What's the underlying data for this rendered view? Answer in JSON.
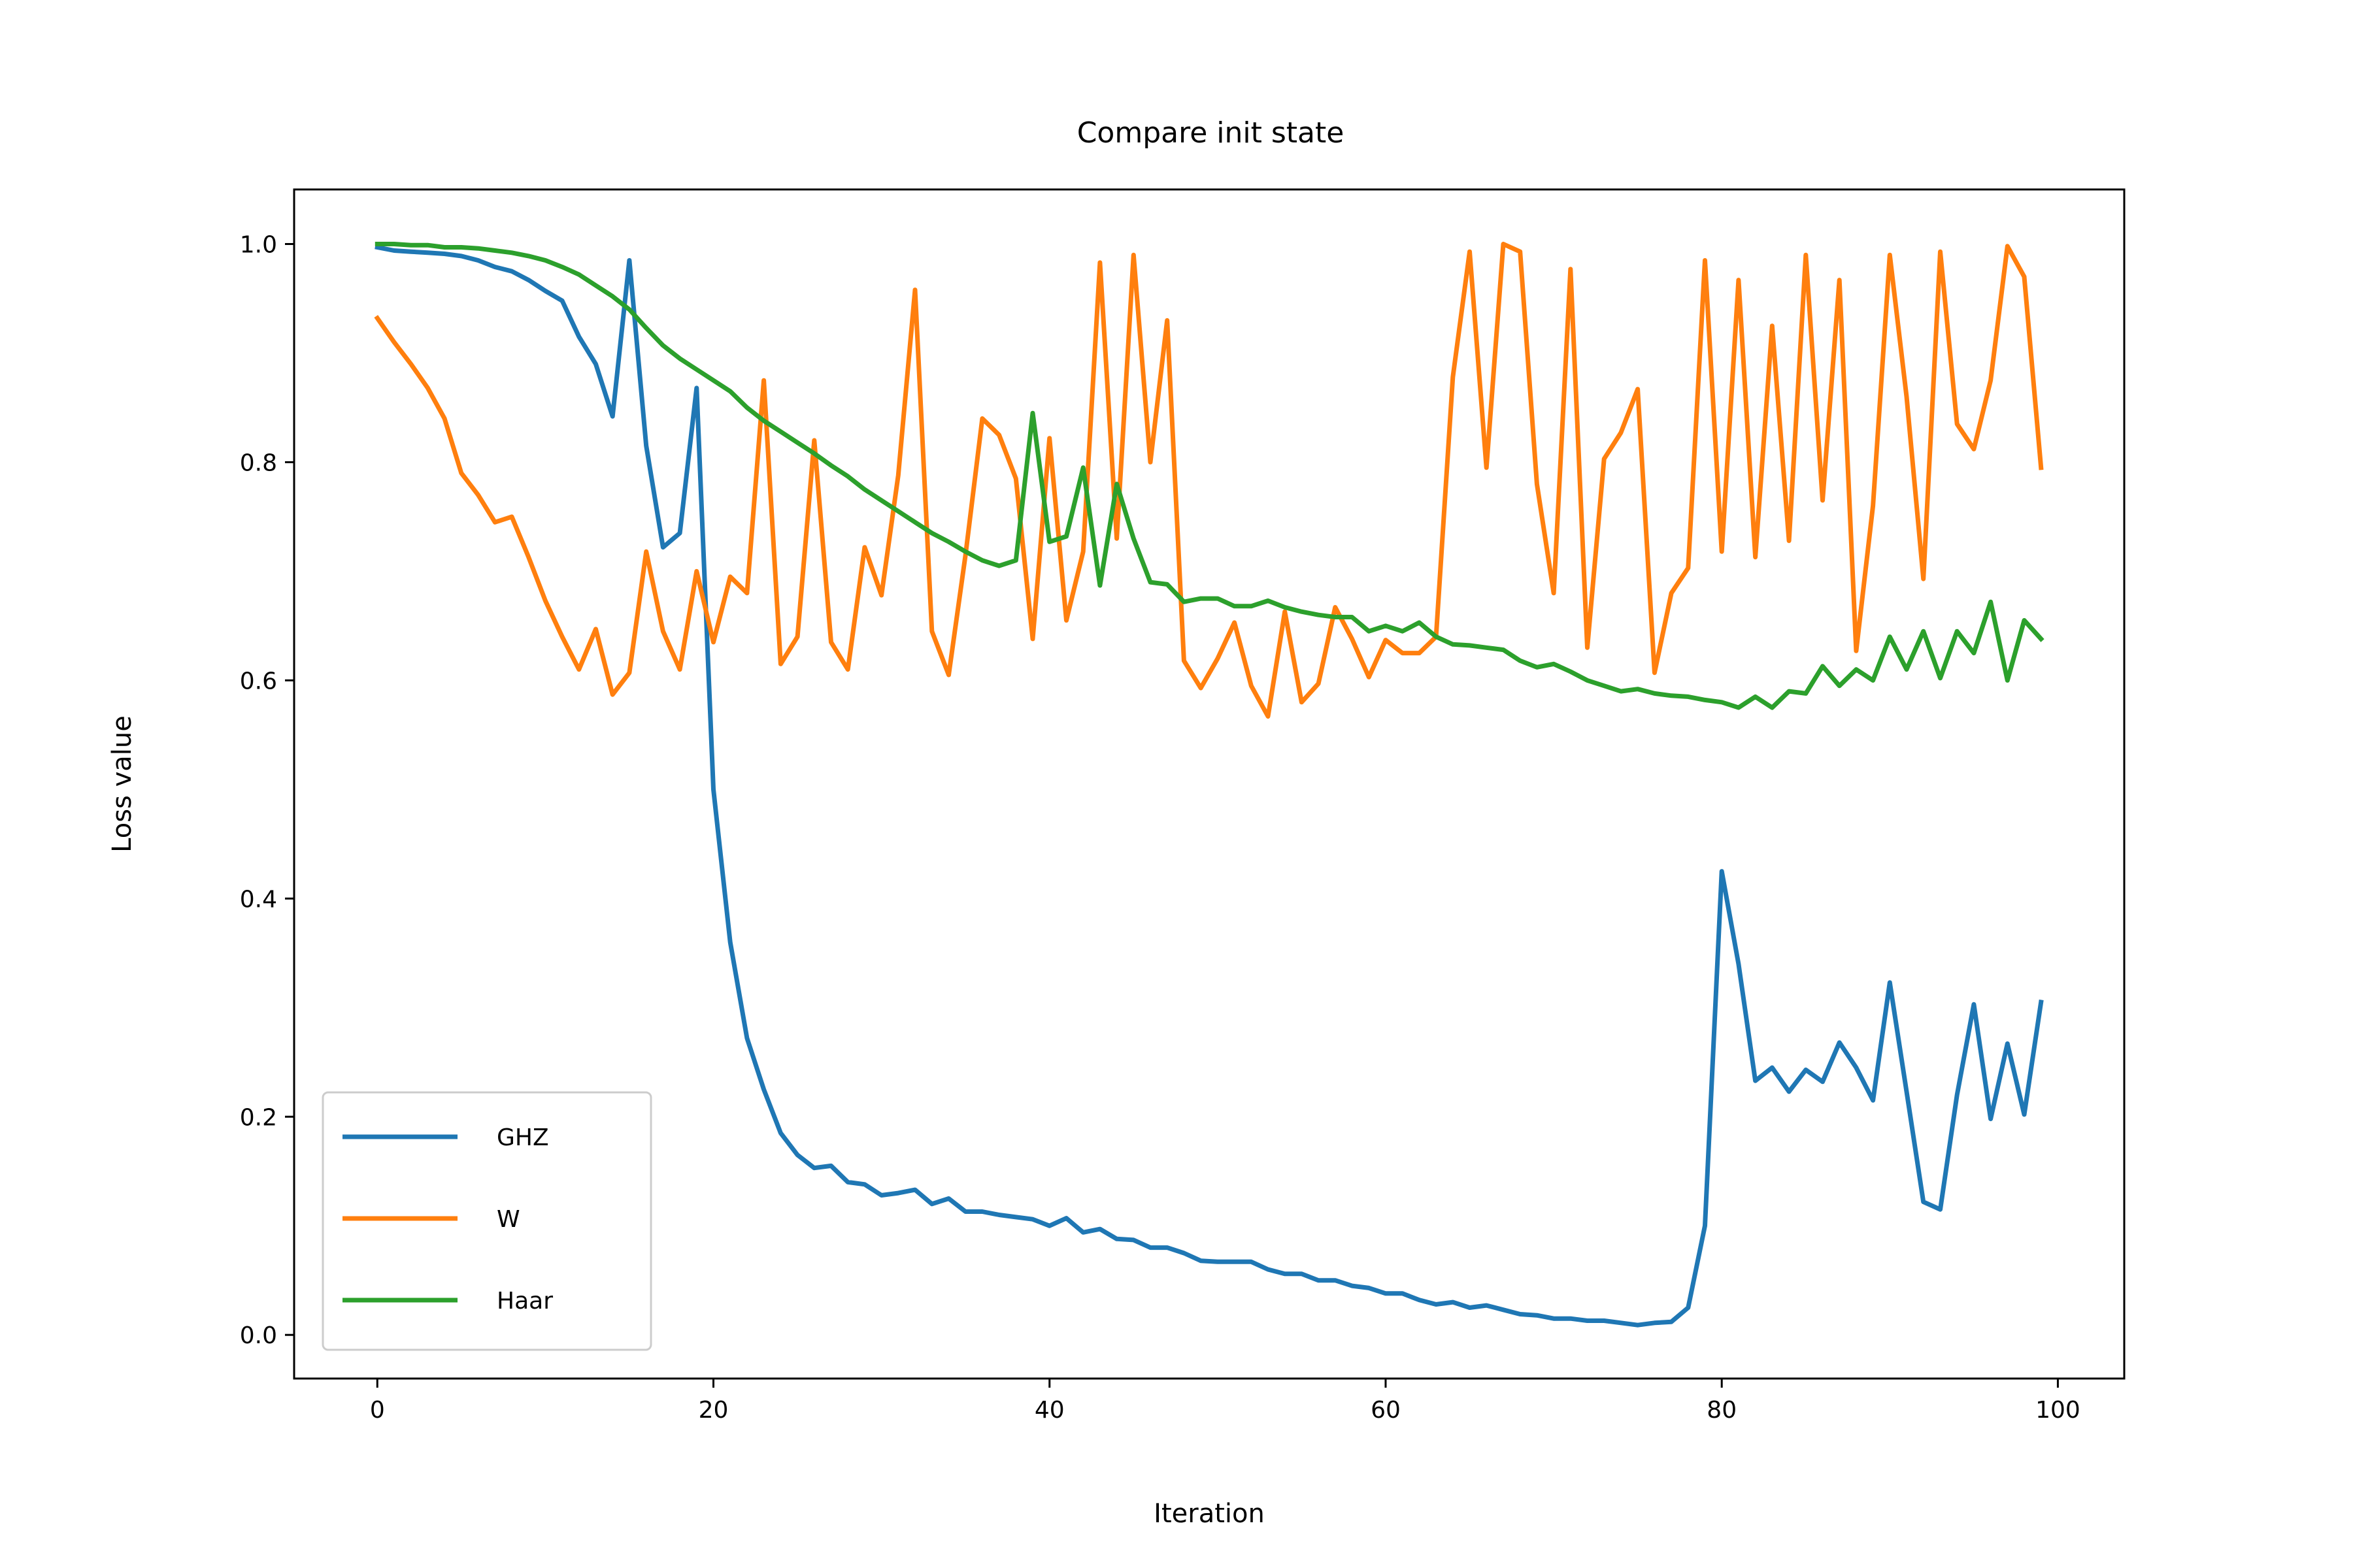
{
  "chart_data": {
    "type": "line",
    "title": "Compare init state",
    "xlabel": "Iteration",
    "ylabel": "Loss value",
    "xlim": [
      -4.95,
      103.95
    ],
    "ylim": [
      -0.04,
      1.05
    ],
    "xticks": [
      0,
      20,
      40,
      60,
      80,
      100
    ],
    "yticks": [
      0.0,
      0.2,
      0.4,
      0.6,
      0.8,
      1.0
    ],
    "xtick_labels": [
      "0",
      "20",
      "40",
      "60",
      "80",
      "100"
    ],
    "ytick_labels": [
      "0.0",
      "0.2",
      "0.4",
      "0.6",
      "0.8",
      "1.0"
    ],
    "grid": false,
    "legend": {
      "position": "lower-left",
      "entries": [
        "GHZ",
        "W",
        "Haar"
      ]
    },
    "x": [
      0,
      1,
      2,
      3,
      4,
      5,
      6,
      7,
      8,
      9,
      10,
      11,
      12,
      13,
      14,
      15,
      16,
      17,
      18,
      19,
      20,
      21,
      22,
      23,
      24,
      25,
      26,
      27,
      28,
      29,
      30,
      31,
      32,
      33,
      34,
      35,
      36,
      37,
      38,
      39,
      40,
      41,
      42,
      43,
      44,
      45,
      46,
      47,
      48,
      49,
      50,
      51,
      52,
      53,
      54,
      55,
      56,
      57,
      58,
      59,
      60,
      61,
      62,
      63,
      64,
      65,
      66,
      67,
      68,
      69,
      70,
      71,
      72,
      73,
      74,
      75,
      76,
      77,
      78,
      79,
      80,
      81,
      82,
      83,
      84,
      85,
      86,
      87,
      88,
      89,
      90,
      91,
      92,
      93,
      94,
      95,
      96,
      97,
      98,
      99
    ],
    "series": [
      {
        "name": "GHZ",
        "color": "#1f77b4",
        "values": [
          0.997,
          0.994,
          0.993,
          0.992,
          0.991,
          0.989,
          0.985,
          0.979,
          0.975,
          0.967,
          0.957,
          0.948,
          0.915,
          0.89,
          0.842,
          0.985,
          0.815,
          0.722,
          0.735,
          0.868,
          0.5,
          0.36,
          0.272,
          0.225,
          0.185,
          0.165,
          0.153,
          0.155,
          0.14,
          0.138,
          0.128,
          0.13,
          0.133,
          0.12,
          0.125,
          0.113,
          0.113,
          0.11,
          0.108,
          0.106,
          0.1,
          0.107,
          0.094,
          0.097,
          0.088,
          0.087,
          0.08,
          0.08,
          0.075,
          0.068,
          0.067,
          0.067,
          0.067,
          0.06,
          0.056,
          0.056,
          0.05,
          0.05,
          0.045,
          0.043,
          0.038,
          0.038,
          0.032,
          0.028,
          0.03,
          0.025,
          0.027,
          0.023,
          0.019,
          0.018,
          0.015,
          0.015,
          0.013,
          0.013,
          0.011,
          0.009,
          0.011,
          0.012,
          0.025,
          0.1,
          0.425,
          0.34,
          0.233,
          0.245,
          0.223,
          0.243,
          0.232,
          0.268,
          0.245,
          0.215,
          0.323,
          0.223,
          0.122,
          0.115,
          0.22,
          0.303,
          0.198,
          0.267,
          0.202,
          0.305
        ]
      },
      {
        "name": "W",
        "color": "#ff7f0e",
        "values": [
          0.932,
          0.91,
          0.89,
          0.868,
          0.84,
          0.79,
          0.77,
          0.745,
          0.75,
          0.713,
          0.673,
          0.64,
          0.61,
          0.647,
          0.587,
          0.607,
          0.718,
          0.645,
          0.61,
          0.7,
          0.635,
          0.695,
          0.68,
          0.875,
          0.615,
          0.64,
          0.82,
          0.635,
          0.61,
          0.722,
          0.678,
          0.788,
          0.958,
          0.645,
          0.605,
          0.715,
          0.84,
          0.825,
          0.785,
          0.638,
          0.822,
          0.655,
          0.718,
          0.983,
          0.73,
          0.99,
          0.8,
          0.93,
          0.618,
          0.593,
          0.62,
          0.653,
          0.595,
          0.567,
          0.663,
          0.58,
          0.597,
          0.667,
          0.638,
          0.603,
          0.637,
          0.625,
          0.625,
          0.64,
          0.878,
          0.993,
          0.795,
          1.0,
          0.993,
          0.78,
          0.68,
          0.977,
          0.63,
          0.803,
          0.827,
          0.867,
          0.607,
          0.68,
          0.703,
          0.985,
          0.718,
          0.967,
          0.713,
          0.925,
          0.728,
          0.99,
          0.765,
          0.967,
          0.627,
          0.76,
          0.99,
          0.86,
          0.693,
          0.993,
          0.835,
          0.812,
          0.875,
          0.998,
          0.97,
          0.795
        ]
      },
      {
        "name": "Haar",
        "color": "#2ca02c",
        "values": [
          1.0,
          1.0,
          0.999,
          0.999,
          0.997,
          0.997,
          0.996,
          0.994,
          0.992,
          0.989,
          0.985,
          0.979,
          0.972,
          0.962,
          0.952,
          0.94,
          0.923,
          0.907,
          0.895,
          0.885,
          0.875,
          0.865,
          0.85,
          0.838,
          0.828,
          0.818,
          0.808,
          0.797,
          0.787,
          0.775,
          0.765,
          0.755,
          0.745,
          0.735,
          0.727,
          0.718,
          0.71,
          0.705,
          0.71,
          0.845,
          0.727,
          0.732,
          0.795,
          0.687,
          0.78,
          0.73,
          0.69,
          0.688,
          0.672,
          0.675,
          0.675,
          0.668,
          0.668,
          0.673,
          0.667,
          0.663,
          0.66,
          0.658,
          0.658,
          0.645,
          0.65,
          0.645,
          0.653,
          0.64,
          0.633,
          0.632,
          0.63,
          0.628,
          0.618,
          0.612,
          0.615,
          0.608,
          0.6,
          0.595,
          0.59,
          0.592,
          0.588,
          0.586,
          0.585,
          0.582,
          0.58,
          0.575,
          0.585,
          0.575,
          0.59,
          0.588,
          0.613,
          0.595,
          0.61,
          0.6,
          0.64,
          0.61,
          0.645,
          0.602,
          0.645,
          0.625,
          0.672,
          0.6,
          0.655,
          0.638
        ]
      }
    ]
  }
}
